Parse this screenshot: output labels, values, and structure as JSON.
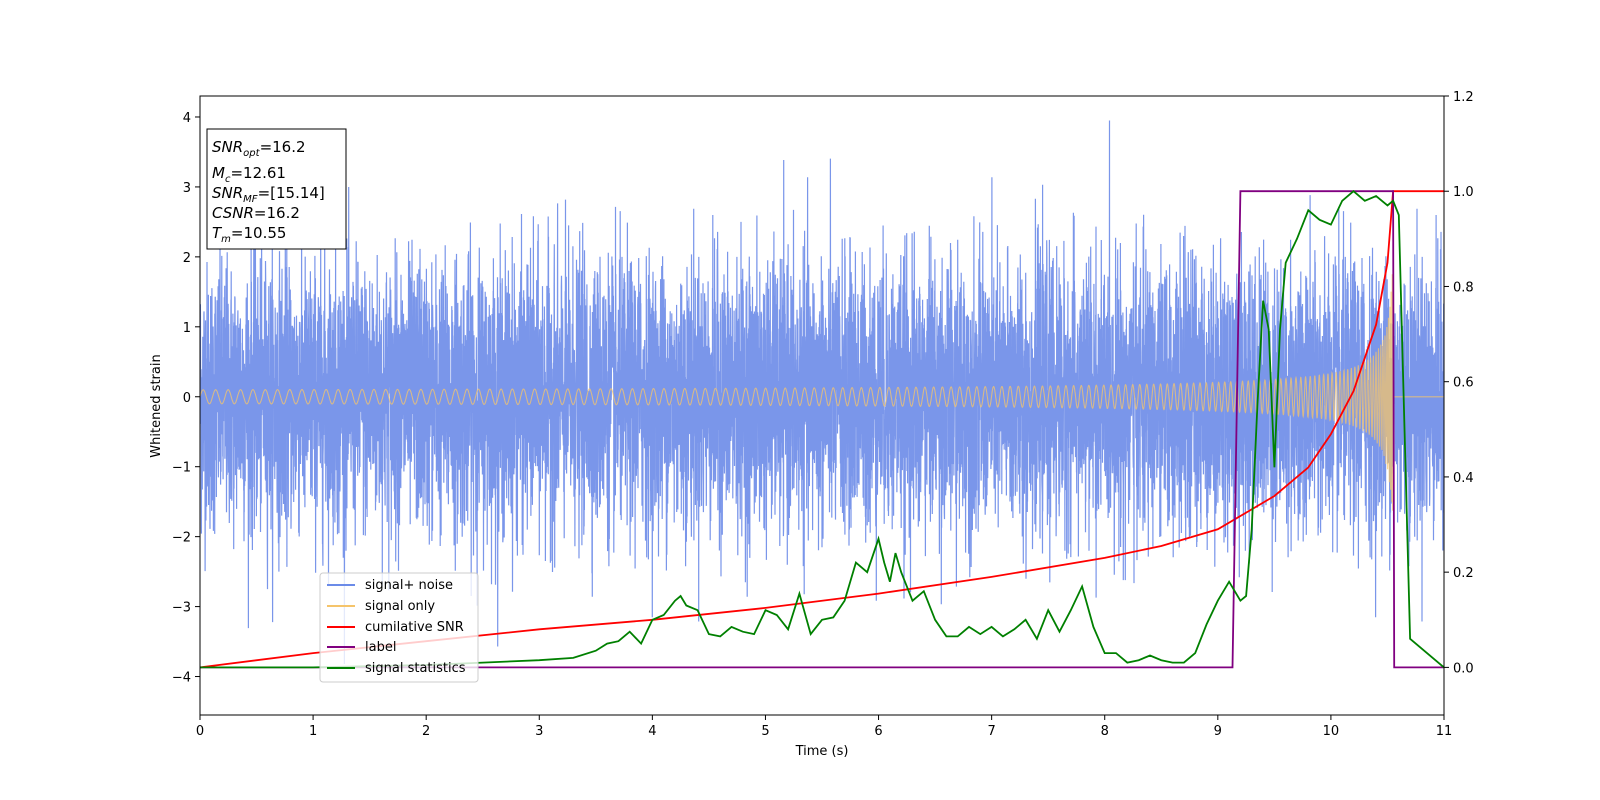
{
  "chart_data": {
    "type": "line",
    "xlabel": "Time (s)",
    "ylabel": "Whitened strain",
    "xlim": [
      0,
      11
    ],
    "ylim_left": [
      -4.55,
      4.3
    ],
    "ylim_right": [
      -0.1,
      1.2
    ],
    "x_ticks": [
      0,
      1,
      2,
      3,
      4,
      5,
      6,
      7,
      8,
      9,
      10,
      11
    ],
    "y_left_ticks": [
      -4,
      -3,
      -2,
      -1,
      0,
      1,
      2,
      3,
      4
    ],
    "y_right_ticks": [
      0.0,
      0.2,
      0.4,
      0.6,
      0.8,
      1.0,
      1.2
    ],
    "legend_position": "lower-left",
    "info_box": {
      "snr_opt": {
        "base": "SNR",
        "sub": "opt",
        "value": "=16.2"
      },
      "mc": {
        "base": "M",
        "sub": "c",
        "value": "=12.61"
      },
      "snr_mf": {
        "base": "SNR",
        "sub": "MF",
        "value": "=[15.14]"
      },
      "csnr": {
        "base": "CSNR",
        "sub": "",
        "value": "=16.2"
      },
      "tm": {
        "base": "T",
        "sub": "m",
        "value": "=10.55"
      }
    },
    "series": [
      {
        "name": "signal+ noise",
        "axis": "left",
        "color": "#6b8be8",
        "description_values": "gaussian whitened noise, std ~1, range approx [-4.2, 3.9] over t in [0, 11]"
      },
      {
        "name": "signal only",
        "axis": "left",
        "color": "#f5c46b",
        "chirp": {
          "t_merge": 10.55,
          "amp_start": 0.05,
          "amp_peak": 2.2
        }
      },
      {
        "name": "cumilative SNR",
        "axis": "right",
        "color": "#ff0000",
        "x": [
          0,
          1,
          2,
          3,
          4,
          5,
          6,
          7,
          8,
          8.5,
          9,
          9.5,
          9.8,
          10,
          10.2,
          10.4,
          10.5,
          10.55,
          11
        ],
        "y": [
          0.0,
          0.03,
          0.055,
          0.08,
          0.1,
          0.125,
          0.155,
          0.19,
          0.23,
          0.255,
          0.29,
          0.36,
          0.42,
          0.49,
          0.58,
          0.72,
          0.85,
          1.0,
          1.0
        ]
      },
      {
        "name": "label",
        "axis": "right",
        "color": "#800080",
        "x": [
          0,
          9.13,
          9.2,
          10.55,
          10.56,
          10.63,
          11
        ],
        "y": [
          0,
          0,
          1,
          1,
          0,
          0,
          0
        ]
      },
      {
        "name": "signal statistics",
        "axis": "right",
        "color": "#008000",
        "x": [
          0,
          1,
          2,
          2.5,
          3,
          3.3,
          3.5,
          3.6,
          3.7,
          3.8,
          3.9,
          4.0,
          4.1,
          4.2,
          4.25,
          4.3,
          4.4,
          4.5,
          4.6,
          4.7,
          4.8,
          4.9,
          5.0,
          5.1,
          5.2,
          5.3,
          5.4,
          5.5,
          5.6,
          5.7,
          5.8,
          5.9,
          6.0,
          6.05,
          6.1,
          6.15,
          6.2,
          6.3,
          6.4,
          6.5,
          6.6,
          6.7,
          6.8,
          6.9,
          7.0,
          7.1,
          7.2,
          7.3,
          7.4,
          7.5,
          7.6,
          7.7,
          7.8,
          7.9,
          8.0,
          8.1,
          8.2,
          8.3,
          8.4,
          8.5,
          8.6,
          8.7,
          8.8,
          8.9,
          9.0,
          9.1,
          9.2,
          9.25,
          9.3,
          9.35,
          9.4,
          9.45,
          9.5,
          9.55,
          9.6,
          9.7,
          9.8,
          9.9,
          10.0,
          10.1,
          10.2,
          10.3,
          10.4,
          10.5,
          10.55,
          10.6,
          10.7,
          11
        ],
        "y": [
          0,
          0.0,
          0.005,
          0.01,
          0.015,
          0.02,
          0.035,
          0.05,
          0.055,
          0.075,
          0.05,
          0.1,
          0.11,
          0.14,
          0.15,
          0.13,
          0.12,
          0.07,
          0.065,
          0.085,
          0.075,
          0.07,
          0.12,
          0.11,
          0.08,
          0.155,
          0.07,
          0.1,
          0.105,
          0.14,
          0.22,
          0.2,
          0.27,
          0.22,
          0.18,
          0.24,
          0.2,
          0.14,
          0.16,
          0.1,
          0.065,
          0.065,
          0.085,
          0.07,
          0.085,
          0.065,
          0.08,
          0.1,
          0.06,
          0.12,
          0.075,
          0.12,
          0.17,
          0.085,
          0.03,
          0.03,
          0.01,
          0.015,
          0.025,
          0.015,
          0.01,
          0.01,
          0.03,
          0.09,
          0.14,
          0.18,
          0.14,
          0.15,
          0.29,
          0.55,
          0.77,
          0.71,
          0.42,
          0.71,
          0.85,
          0.9,
          0.96,
          0.94,
          0.93,
          0.98,
          1.0,
          0.98,
          0.99,
          0.97,
          0.98,
          0.95,
          0.06,
          0.0
        ]
      }
    ]
  }
}
